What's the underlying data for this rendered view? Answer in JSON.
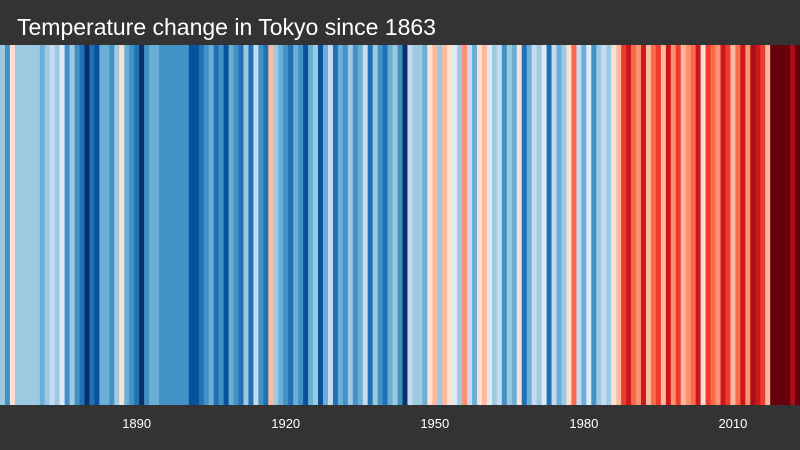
{
  "chart_data": {
    "type": "heatmap",
    "title": "Temperature change in Tokyo since 1863",
    "x_ticks": [
      1890,
      1920,
      1950,
      1980,
      2010
    ],
    "palette": [
      "#08306b",
      "#08519c",
      "#2171b5",
      "#4292c6",
      "#6baed6",
      "#9ecae1",
      "#c6dbef",
      "#deebf7",
      "#fee0d2",
      "#fcbba1",
      "#fc9272",
      "#fb6a4a",
      "#ef3b2c",
      "#cb181d",
      "#a50f15",
      "#67000d"
    ],
    "x": [
      1863,
      1864,
      1865,
      1866,
      1867,
      1868,
      1869,
      1870,
      1871,
      1872,
      1873,
      1874,
      1875,
      1876,
      1877,
      1878,
      1879,
      1880,
      1881,
      1882,
      1883,
      1884,
      1885,
      1886,
      1887,
      1888,
      1889,
      1890,
      1891,
      1892,
      1893,
      1894,
      1895,
      1896,
      1897,
      1898,
      1899,
      1900,
      1901,
      1902,
      1903,
      1904,
      1905,
      1906,
      1907,
      1908,
      1909,
      1910,
      1911,
      1912,
      1913,
      1914,
      1915,
      1916,
      1917,
      1918,
      1919,
      1920,
      1921,
      1922,
      1923,
      1924,
      1925,
      1926,
      1927,
      1928,
      1929,
      1930,
      1931,
      1932,
      1933,
      1934,
      1935,
      1936,
      1937,
      1938,
      1939,
      1940,
      1941,
      1942,
      1943,
      1944,
      1945,
      1946,
      1947,
      1948,
      1949,
      1950,
      1951,
      1952,
      1953,
      1954,
      1955,
      1956,
      1957,
      1958,
      1959,
      1960,
      1961,
      1962,
      1963,
      1964,
      1965,
      1966,
      1967,
      1968,
      1969,
      1970,
      1971,
      1972,
      1973,
      1974,
      1975,
      1976,
      1977,
      1978,
      1979,
      1980,
      1981,
      1982,
      1983,
      1984,
      1985,
      1986,
      1987,
      1988,
      1989,
      1990,
      1991,
      1992,
      1993,
      1994,
      1995,
      1996,
      1997,
      1998,
      1999,
      2000,
      2001,
      2002,
      2003,
      2004,
      2005,
      2006,
      2007,
      2008,
      2009,
      2010,
      2011,
      2012,
      2013,
      2014,
      2015,
      2016,
      2017,
      2018,
      2019,
      2020,
      2021,
      2022,
      2023
    ],
    "values": [
      5,
      3,
      8,
      5,
      5,
      5,
      5,
      5,
      4,
      5,
      6,
      5,
      7,
      3,
      5,
      3,
      2,
      0,
      2,
      1,
      4,
      4,
      3,
      5,
      8,
      4,
      3,
      2,
      0,
      3,
      4,
      4,
      3,
      3,
      3,
      3,
      3,
      3,
      1,
      1,
      2,
      3,
      4,
      2,
      3,
      1,
      4,
      3,
      2,
      5,
      2,
      6,
      3,
      2,
      9,
      5,
      4,
      3,
      2,
      4,
      3,
      1,
      4,
      5,
      1,
      4,
      6,
      2,
      4,
      3,
      5,
      3,
      4,
      6,
      2,
      5,
      3,
      2,
      4,
      5,
      3,
      0,
      6,
      5,
      5,
      4,
      8,
      9,
      5,
      9,
      8,
      7,
      5,
      10,
      6,
      4,
      8,
      9,
      7,
      5,
      6,
      3,
      5,
      4,
      8,
      2,
      4,
      6,
      5,
      7,
      2,
      6,
      4,
      5,
      8,
      11,
      6,
      4,
      7,
      3,
      5,
      6,
      5,
      8,
      9,
      12,
      13,
      11,
      10,
      13,
      9,
      11,
      12,
      9,
      13,
      10,
      12,
      9,
      10,
      11,
      13,
      8,
      12,
      11,
      10,
      13,
      12,
      9,
      11,
      13,
      10,
      14,
      13,
      12,
      9,
      15,
      15,
      15,
      15,
      14,
      15
    ]
  }
}
